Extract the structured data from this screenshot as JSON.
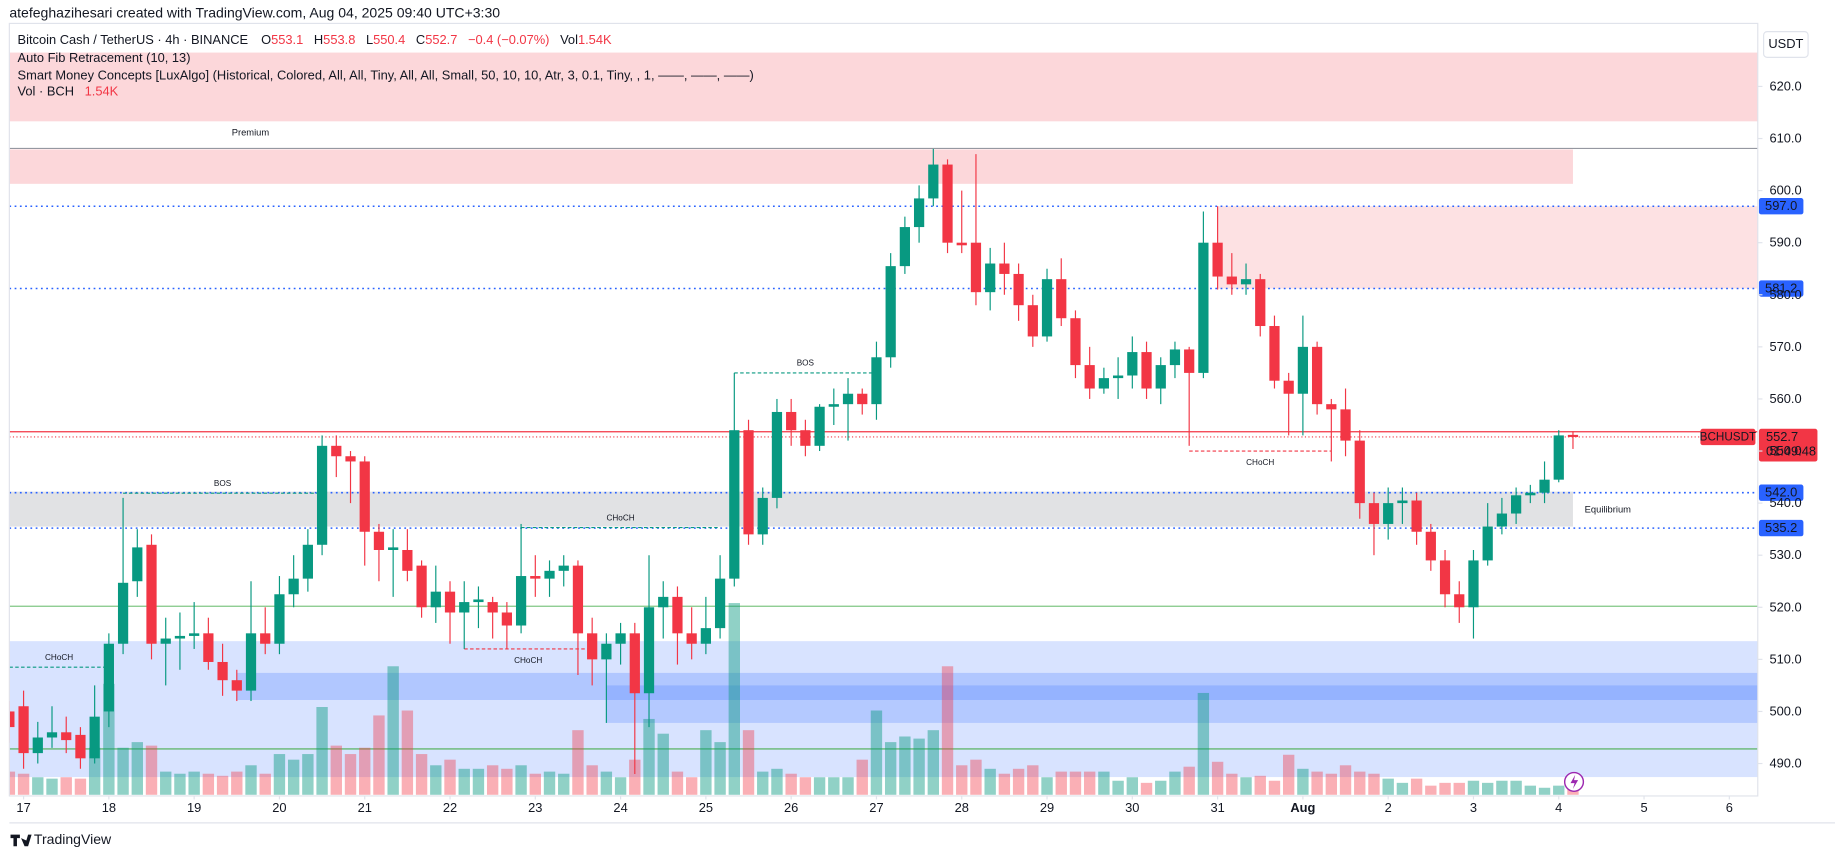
{
  "header": {
    "created_line": "atefeghazihesari created with TradingView.com, Aug 04, 2025 09:40 UTC+3:30",
    "symbol": "Bitcoin Cash / TetherUS · 4h · BINANCE",
    "ohlc_names": [
      "O",
      "H",
      "L",
      "C"
    ],
    "change": "−0.4 (−0.07%)",
    "vol_name": "Vol",
    "volume": "1.54K",
    "indicators": [
      "Auto Fib Retracement (10, 13)",
      "Smart Money Concepts [LuxAlgo] (Historical, Colored, All, All, Tiny, All, All, Small, 50, 10, 10, Atr, 3, 0.1, Tiny, , 1, ——, ——, ——)"
    ],
    "vol_indicator": "Vol · BCH",
    "currency": "USDT"
  },
  "chart_data": {
    "type": "candlestick",
    "up_color": "#089981",
    "down_color": "#f23645",
    "open": [
      500,
      501,
      492,
      495,
      496,
      495.5,
      491,
      500,
      513,
      525,
      532,
      513,
      514,
      514.5,
      515,
      509.5,
      506,
      504,
      515,
      513,
      522.5,
      525.5,
      532,
      551,
      549,
      548,
      534.5,
      531,
      531,
      528,
      520,
      523,
      519,
      521,
      521,
      519,
      516.5,
      526,
      525.5,
      527,
      528,
      515,
      510,
      513,
      515,
      503.5,
      520,
      522,
      515,
      513,
      516,
      525.5,
      554,
      534,
      541,
      557.5,
      554,
      551,
      558.5,
      559,
      561,
      559,
      568,
      585.5,
      593,
      598.5,
      605,
      590,
      590,
      580.5,
      586,
      584,
      578,
      572,
      583,
      575.5,
      566.5,
      562,
      564,
      564.5,
      569,
      562,
      566.5,
      569.5,
      565,
      590,
      583.5,
      582,
      583,
      574,
      563.5,
      561,
      570,
      559,
      558,
      552,
      540,
      536,
      540,
      540.5,
      534.5,
      529,
      522.5,
      520,
      529,
      535.5,
      538,
      541.5,
      542,
      544.5,
      553.1
    ],
    "high": [
      502,
      504,
      498,
      501,
      499,
      497,
      505,
      515,
      541,
      535,
      534,
      518,
      519,
      521,
      518,
      513,
      508,
      525,
      520,
      526,
      530,
      535,
      553,
      553,
      550,
      549,
      536,
      535,
      535,
      529,
      528,
      525,
      525,
      524,
      522,
      521,
      536,
      530,
      529,
      530,
      529,
      518,
      515,
      517,
      517,
      530,
      525,
      524,
      520,
      522,
      530,
      565,
      556,
      543,
      560,
      560,
      556,
      559,
      562,
      564,
      562,
      571,
      588,
      595,
      601,
      608,
      606,
      600,
      607,
      589,
      590,
      586,
      580,
      585,
      587,
      577,
      570,
      566,
      568,
      572,
      571,
      568,
      571,
      570,
      596,
      597,
      588,
      586,
      584,
      576,
      565,
      576,
      571,
      560,
      562,
      554,
      542,
      543,
      543,
      542,
      536,
      531,
      525,
      531,
      540,
      541,
      543,
      543.5,
      548,
      554,
      553.8
    ],
    "low": [
      494,
      489,
      490,
      493,
      492,
      489,
      490,
      497,
      511,
      522,
      510,
      505,
      508,
      512,
      508,
      503,
      502,
      502,
      511,
      511,
      520,
      523,
      530,
      545,
      540,
      528,
      525,
      522,
      525,
      518,
      517,
      513,
      512,
      516,
      514,
      512,
      515,
      522,
      522,
      524,
      507,
      505,
      497.8,
      509,
      488,
      497,
      514,
      509,
      510,
      511,
      514,
      524,
      532,
      532,
      539,
      551,
      549,
      550,
      555,
      552,
      557,
      556,
      566,
      584,
      590,
      597,
      588,
      588,
      578,
      577,
      580,
      575,
      570,
      571,
      574,
      564,
      560,
      561,
      560,
      562,
      560,
      559,
      564,
      551,
      564,
      581,
      580,
      580,
      572,
      562,
      553,
      553,
      557,
      548,
      549,
      537,
      530,
      533,
      536,
      532,
      527,
      520,
      517,
      514,
      528,
      534,
      536,
      540,
      540,
      544,
      550.4
    ],
    "close": [
      497,
      492,
      495,
      496,
      494.5,
      491,
      499,
      513,
      524.7,
      531.5,
      513,
      514,
      514.5,
      515,
      509.5,
      506,
      504,
      515,
      513,
      522.5,
      525.5,
      532,
      551,
      549,
      548,
      534.5,
      531,
      531.5,
      527,
      520,
      523,
      519,
      521,
      521.5,
      519,
      516.5,
      526,
      525.5,
      527,
      528,
      515,
      510,
      513,
      515,
      503.5,
      520,
      522,
      515,
      513,
      516,
      525.5,
      554,
      534,
      541,
      557.5,
      554,
      551,
      558.5,
      559,
      561,
      559,
      568,
      585.5,
      593,
      598.5,
      605,
      590,
      589.5,
      580.5,
      586,
      584,
      578,
      572,
      583,
      575.5,
      566.5,
      562,
      564,
      564.5,
      569,
      562,
      566.5,
      569.5,
      565,
      590,
      583.5,
      582,
      583,
      574,
      563.5,
      561,
      570,
      559,
      558,
      552,
      540,
      536,
      540,
      540.5,
      534.5,
      529,
      522.5,
      520,
      529,
      535.5,
      538,
      541.5,
      542,
      544.5,
      553,
      552.7
    ],
    "volume": [
      3.3,
      3,
      2.5,
      2.3,
      2.5,
      2.3,
      6.7,
      15.8,
      6.7,
      7.5,
      7,
      3.3,
      3,
      3.3,
      3,
      2.7,
      3.3,
      4.2,
      3,
      5.8,
      5,
      5.8,
      12.5,
      7,
      5.8,
      6.7,
      11.3,
      18.3,
      12,
      5.8,
      4.2,
      5,
      3.7,
      3.7,
      4.2,
      3.7,
      4.2,
      3,
      3.3,
      3,
      9.2,
      4.2,
      3.3,
      2.5,
      5,
      10.8,
      8.7,
      3.3,
      2.5,
      9.2,
      7.5,
      27.3,
      9.2,
      3.3,
      3.7,
      3,
      2.5,
      2.5,
      2.5,
      2.5,
      5,
      12,
      7.5,
      8.3,
      8,
      9.2,
      18.3,
      4.2,
      5,
      3.7,
      3,
      3.7,
      4.2,
      2.5,
      3.3,
      3.3,
      3.3,
      3.3,
      2,
      2.5,
      1.7,
      2,
      3.3,
      4,
      14.5,
      4.7,
      3,
      2.5,
      2.7,
      2,
      5.7,
      3.7,
      3.3,
      3,
      4.2,
      3.3,
      3,
      2.3,
      1.7,
      2.3,
      1.3,
      1.7,
      1.7,
      2,
      1.7,
      2,
      2,
      1.3,
      1,
      1.3,
      1.54
    ],
    "xlim": [
      0,
      123
    ],
    "xticks": [
      {
        "value": 1,
        "label": "17"
      },
      {
        "value": 7,
        "label": "18"
      },
      {
        "value": 13,
        "label": "19"
      },
      {
        "value": 19,
        "label": "20"
      },
      {
        "value": 25,
        "label": "21"
      },
      {
        "value": 31,
        "label": "22"
      },
      {
        "value": 37,
        "label": "23"
      },
      {
        "value": 43,
        "label": "24"
      },
      {
        "value": 49,
        "label": "25"
      },
      {
        "value": 55,
        "label": "26"
      },
      {
        "value": 61,
        "label": "27"
      },
      {
        "value": 67,
        "label": "28"
      },
      {
        "value": 73,
        "label": "29"
      },
      {
        "value": 79,
        "label": "30"
      },
      {
        "value": 85,
        "label": "31"
      },
      {
        "value": 91,
        "label": "Aug"
      },
      {
        "value": 97,
        "label": "2"
      },
      {
        "value": 103,
        "label": "3"
      },
      {
        "value": 109,
        "label": "4"
      },
      {
        "value": 115,
        "label": "5"
      },
      {
        "value": 121,
        "label": "6"
      }
    ],
    "ylim": [
      484.0,
      632.1
    ],
    "yticks": [
      {
        "value": 490,
        "label": "490.0"
      },
      {
        "value": 500,
        "label": "500.0"
      },
      {
        "value": 510,
        "label": "510.0"
      },
      {
        "value": 520,
        "label": "520.0"
      },
      {
        "value": 530,
        "label": "530.0"
      },
      {
        "value": 540,
        "label": "540.0"
      },
      {
        "value": 550,
        "label": "550.0"
      },
      {
        "value": 560,
        "label": "560.0"
      },
      {
        "value": 570,
        "label": "570.0"
      },
      {
        "value": 580,
        "label": "580.0"
      },
      {
        "value": 590,
        "label": "590.0"
      },
      {
        "value": 600,
        "label": "600.0"
      },
      {
        "value": 610,
        "label": "610.0"
      },
      {
        "value": 620,
        "label": "620.0"
      }
    ],
    "grid": false,
    "zones": [
      {
        "label": "Premium",
        "low": 613.3,
        "high": 626.5,
        "start": 0,
        "end": 123,
        "color": "rgba(242,54,69,0.2)"
      },
      {
        "low": 601.3,
        "high": 607.9,
        "start": 0,
        "end": 110,
        "color": "rgba(242,54,69,0.2)"
      },
      {
        "low": 581.2,
        "high": 597,
        "start": 85,
        "end": 123,
        "color": "rgba(242,54,69,0.15)"
      },
      {
        "label": "Equilibrium",
        "low": 535.5,
        "high": 542.2,
        "start": 0,
        "end": 110,
        "color": "rgba(120,123,134,0.22)"
      },
      {
        "low": 487.4,
        "high": 513.5,
        "start": 0,
        "end": 123,
        "color": "rgba(41,98,255,0.18)"
      },
      {
        "low": 502.2,
        "high": 507.4,
        "start": 16,
        "end": 123,
        "color": "rgba(41,98,255,0.22)"
      },
      {
        "low": 497.8,
        "high": 505,
        "start": 42,
        "end": 123,
        "color": "rgba(41,98,255,0.2)"
      }
    ],
    "lines": [
      {
        "value": 608.1,
        "color": "#9598a1"
      },
      {
        "value": 553.7,
        "color": "#f23645"
      },
      {
        "value": 520.2,
        "color": "#81c784"
      },
      {
        "value": 492.8,
        "color": "#4caf50"
      }
    ],
    "levels": [
      {
        "value": 597,
        "label": "597.0"
      },
      {
        "value": 581.2,
        "label": "581.2"
      },
      {
        "value": 542,
        "label": "542.0"
      },
      {
        "value": 535.2,
        "label": "535.2"
      }
    ],
    "level_color": "#2962ff",
    "structures": [
      {
        "label": "BOS",
        "price": 565,
        "start": 51,
        "end": 61,
        "color": "#089981"
      },
      {
        "label": "BOS",
        "price": 541.9,
        "start": 8,
        "end": 22,
        "color": "#089981"
      },
      {
        "label": "CHoCH",
        "price": 535.3,
        "start": 36,
        "end": 50,
        "color": "#089981"
      },
      {
        "label": "CHoCH",
        "price": 508.5,
        "start": 0,
        "end": 7,
        "color": "#089981"
      },
      {
        "label": "CHoCH",
        "price": 512,
        "start": 32,
        "end": 41,
        "color": "#f23645"
      },
      {
        "label": "CHoCH",
        "price": 550,
        "start": 83,
        "end": 93,
        "color": "#f23645"
      }
    ],
    "last_price_badge": "BCHUSDT",
    "countdown": "01:49:48"
  },
  "footer": {
    "brand": "TradingView"
  }
}
